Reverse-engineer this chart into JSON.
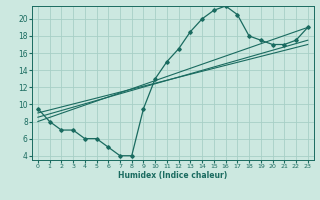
{
  "xlabel": "Humidex (Indice chaleur)",
  "ylabel": "",
  "bg_color": "#cce8e0",
  "grid_color": "#a8cfc6",
  "line_color": "#1a6b60",
  "xlim": [
    -0.5,
    23.5
  ],
  "ylim": [
    3.5,
    21.5
  ],
  "xticks": [
    0,
    1,
    2,
    3,
    4,
    5,
    6,
    7,
    8,
    9,
    10,
    11,
    12,
    13,
    14,
    15,
    16,
    17,
    18,
    19,
    20,
    21,
    22,
    23
  ],
  "yticks": [
    4,
    6,
    8,
    10,
    12,
    14,
    16,
    18,
    20
  ],
  "curve_x": [
    0,
    1,
    2,
    3,
    4,
    5,
    6,
    7,
    8,
    9,
    10,
    11,
    12,
    13,
    14,
    15,
    16,
    17,
    18,
    19,
    20,
    21,
    22,
    23
  ],
  "curve_y": [
    9.5,
    8.0,
    7.0,
    7.0,
    6.0,
    6.0,
    5.0,
    4.0,
    4.0,
    9.5,
    13.0,
    15.0,
    16.5,
    18.5,
    20.0,
    21.0,
    21.5,
    20.5,
    18.0,
    17.5,
    17.0,
    17.0,
    17.5,
    19.0
  ],
  "reg_lines": [
    {
      "x": [
        0,
        23
      ],
      "y": [
        9.0,
        17.0
      ]
    },
    {
      "x": [
        0,
        23
      ],
      "y": [
        8.5,
        17.5
      ]
    },
    {
      "x": [
        0,
        23
      ],
      "y": [
        8.0,
        19.0
      ]
    }
  ]
}
